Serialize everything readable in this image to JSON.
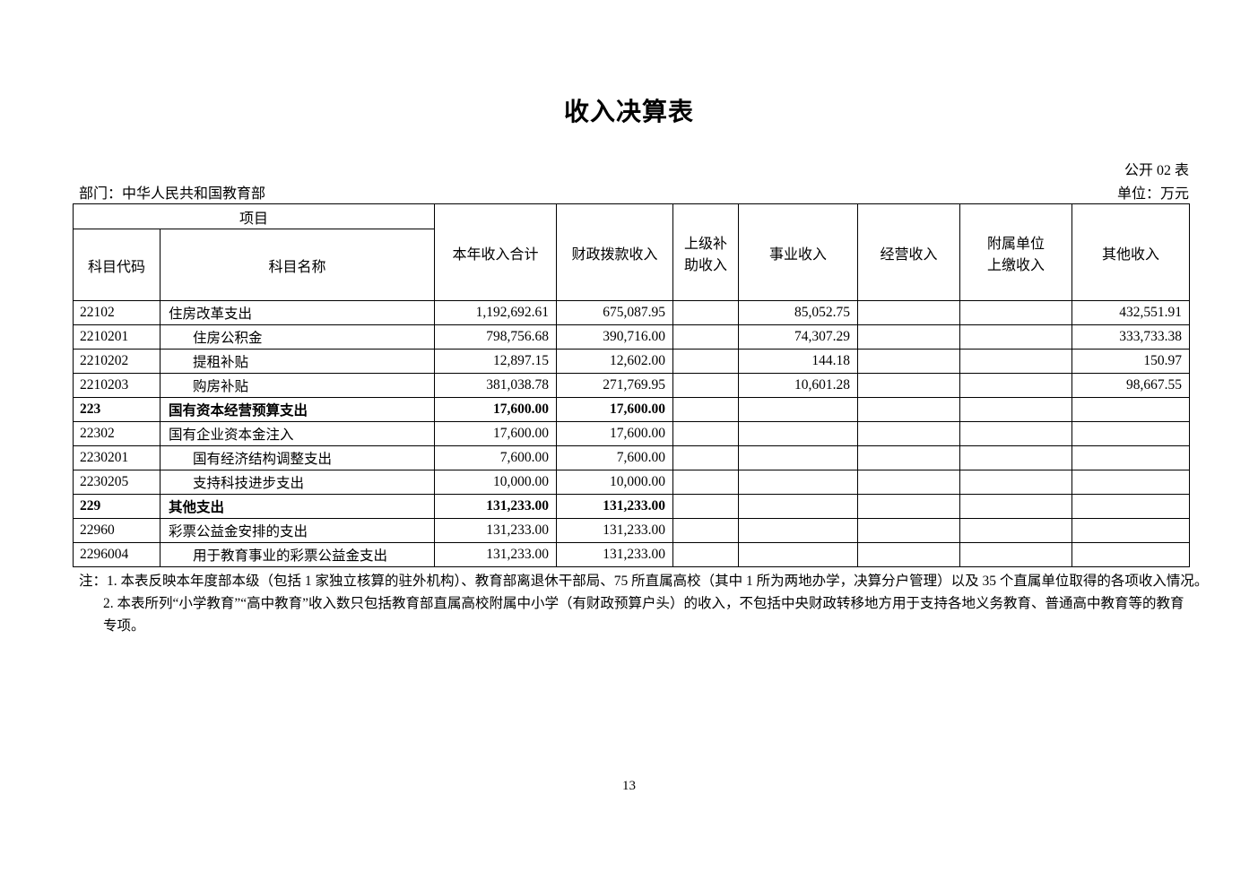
{
  "page": {
    "title": "收入决算表",
    "form_code": "公开 02 表",
    "department": "部门：中华人民共和国教育部",
    "unit": "单位：万元",
    "page_number": "13"
  },
  "table": {
    "headers": {
      "project_group": "项目",
      "subject_code": "科目代码",
      "subject_name": "科目名称",
      "annual_income_total": "本年收入合计",
      "fiscal_appropriation_income": "财政拨款收入",
      "superior_subsidy_income": "上级补\n助收入",
      "business_income": "事业收入",
      "operating_income": "经营收入",
      "affiliated_unit_income": "附属单位\n上缴收入",
      "other_income": "其他收入"
    },
    "rows": [
      {
        "code": "22102",
        "name": "住房改革支出",
        "indent": false,
        "bold": false,
        "values": [
          "1,192,692.61",
          "675,087.95",
          "",
          "85,052.75",
          "",
          "",
          "432,551.91"
        ]
      },
      {
        "code": "2210201",
        "name": "住房公积金",
        "indent": true,
        "bold": false,
        "values": [
          "798,756.68",
          "390,716.00",
          "",
          "74,307.29",
          "",
          "",
          "333,733.38"
        ]
      },
      {
        "code": "2210202",
        "name": "提租补贴",
        "indent": true,
        "bold": false,
        "values": [
          "12,897.15",
          "12,602.00",
          "",
          "144.18",
          "",
          "",
          "150.97"
        ]
      },
      {
        "code": "2210203",
        "name": "购房补贴",
        "indent": true,
        "bold": false,
        "values": [
          "381,038.78",
          "271,769.95",
          "",
          "10,601.28",
          "",
          "",
          "98,667.55"
        ]
      },
      {
        "code": "223",
        "name": "国有资本经营预算支出",
        "indent": false,
        "bold": true,
        "values": [
          "17,600.00",
          "17,600.00",
          "",
          "",
          "",
          "",
          ""
        ]
      },
      {
        "code": "22302",
        "name": "国有企业资本金注入",
        "indent": false,
        "bold": false,
        "values": [
          "17,600.00",
          "17,600.00",
          "",
          "",
          "",
          "",
          ""
        ]
      },
      {
        "code": "2230201",
        "name": "国有经济结构调整支出",
        "indent": true,
        "bold": false,
        "values": [
          "7,600.00",
          "7,600.00",
          "",
          "",
          "",
          "",
          ""
        ]
      },
      {
        "code": "2230205",
        "name": "支持科技进步支出",
        "indent": true,
        "bold": false,
        "values": [
          "10,000.00",
          "10,000.00",
          "",
          "",
          "",
          "",
          ""
        ]
      },
      {
        "code": "229",
        "name": "其他支出",
        "indent": false,
        "bold": true,
        "values": [
          "131,233.00",
          "131,233.00",
          "",
          "",
          "",
          "",
          ""
        ]
      },
      {
        "code": "22960",
        "name": "彩票公益金安排的支出",
        "indent": false,
        "bold": false,
        "values": [
          "131,233.00",
          "131,233.00",
          "",
          "",
          "",
          "",
          ""
        ]
      },
      {
        "code": "2296004",
        "name": "用于教育事业的彩票公益金支出",
        "indent": true,
        "bold": false,
        "values": [
          "131,233.00",
          "131,233.00",
          "",
          "",
          "",
          "",
          ""
        ]
      }
    ]
  },
  "notes": {
    "lines": [
      "注：1. 本表反映本年度部本级（包括 1 家独立核算的驻外机构）、教育部离退休干部局、75 所直属高校（其中 1 所为两地办学，决算分户管理）以及 35 个直属单位取得的各项收入情况。",
      "2. 本表所列“小学教育”“高中教育”收入数只包括教育部直属高校附属中小学（有财政预算户头）的收入，不包括中央财政转移地方用于支持各地义务教育、普通高中教育等的教育",
      "专项。"
    ]
  }
}
